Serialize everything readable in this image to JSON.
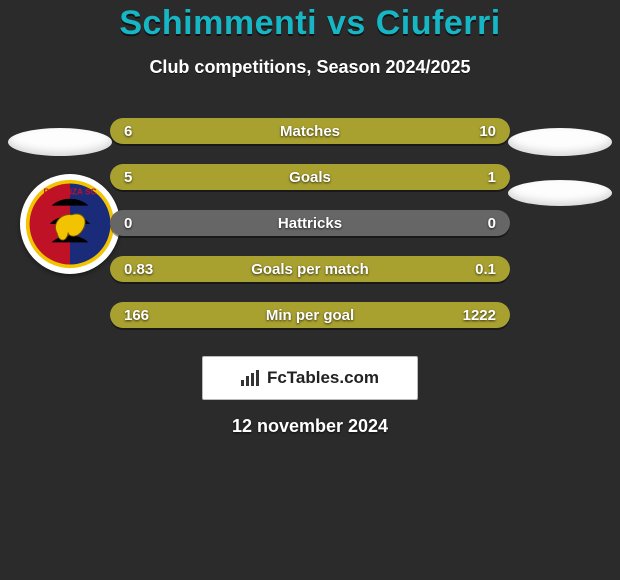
{
  "title": "Schimmenti vs Ciuferri",
  "subtitle": "Club competitions, Season 2024/2025",
  "brand": "FcTables.com",
  "date": "12 november 2024",
  "colors": {
    "accent": "#16b6c5",
    "fill": "#a8a02f",
    "track": "#666666",
    "bg": "#2b2b2b"
  },
  "crest": {
    "top_text": "POTENZA SC",
    "ring_color": "#f2c300",
    "left_half": "#c01226",
    "right_half": "#1a2b7a"
  },
  "rows": [
    {
      "label": "Matches",
      "left": "6",
      "right": "10",
      "left_pct": 37.5,
      "right_pct": 62.5
    },
    {
      "label": "Goals",
      "left": "5",
      "right": "1",
      "left_pct": 83.3,
      "right_pct": 16.7
    },
    {
      "label": "Hattricks",
      "left": "0",
      "right": "0",
      "left_pct": 0,
      "right_pct": 0
    },
    {
      "label": "Goals per match",
      "left": "0.83",
      "right": "0.1",
      "left_pct": 89.2,
      "right_pct": 10.8
    },
    {
      "label": "Min per goal",
      "left": "166",
      "right": "1222",
      "left_pct": 12.0,
      "right_pct": 88.0
    }
  ]
}
